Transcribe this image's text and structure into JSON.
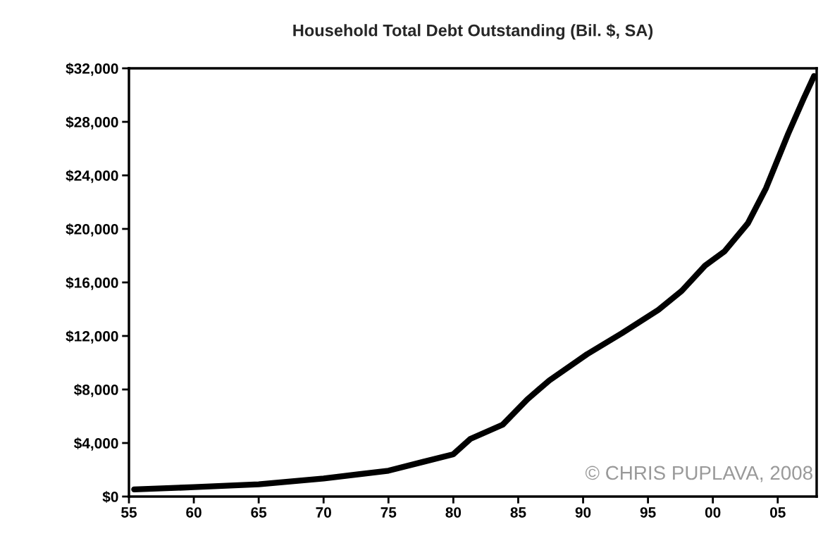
{
  "chart_data": {
    "type": "line",
    "title": "Household Total Debt Outstanding (Bil. $, SA)",
    "x": [
      1955.4,
      1960,
      1965,
      1970,
      1975,
      1977.7,
      1980,
      1981.3,
      1983.8,
      1985.7,
      1987.4,
      1990.3,
      1993,
      1995.8,
      1997.6,
      1999.4,
      2000.9,
      2002.7,
      2004.1,
      2005.8,
      2007,
      2007.8
    ],
    "series": [
      {
        "color": "#000000",
        "values": [
          530,
          700,
          910,
          1350,
          1930,
          2600,
          3160,
          4300,
          5370,
          7260,
          8680,
          10630,
          12210,
          13950,
          15370,
          17260,
          18320,
          20420,
          23050,
          27100,
          29740,
          31420
        ]
      }
    ],
    "xlim": [
      1955,
      2008
    ],
    "xticks": [
      {
        "value": 1955,
        "label": "55"
      },
      {
        "value": 1960,
        "label": "60"
      },
      {
        "value": 1965,
        "label": "65"
      },
      {
        "value": 1970,
        "label": "70"
      },
      {
        "value": 1975,
        "label": "75"
      },
      {
        "value": 1980,
        "label": "80"
      },
      {
        "value": 1985,
        "label": "85"
      },
      {
        "value": 1990,
        "label": "90"
      },
      {
        "value": 1995,
        "label": "95"
      },
      {
        "value": 2000,
        "label": "00"
      },
      {
        "value": 2005,
        "label": "05"
      }
    ],
    "ylim": [
      0,
      32000
    ],
    "yticks": [
      {
        "value": 0,
        "label": "$0"
      },
      {
        "value": 4000,
        "label": "$4,000"
      },
      {
        "value": 8000,
        "label": "$8,000"
      },
      {
        "value": 12000,
        "label": "$12,000"
      },
      {
        "value": 16000,
        "label": "$16,000"
      },
      {
        "value": 20000,
        "label": "$20,000"
      },
      {
        "value": 24000,
        "label": "$24,000"
      },
      {
        "value": 28000,
        "label": "$28,000"
      },
      {
        "value": 32000,
        "label": "$32,000"
      }
    ],
    "grid": false,
    "legend": false,
    "marker": "none",
    "line_style": "solid",
    "annotations": [
      "© CHRIS PUPLAVA, 2008"
    ]
  }
}
